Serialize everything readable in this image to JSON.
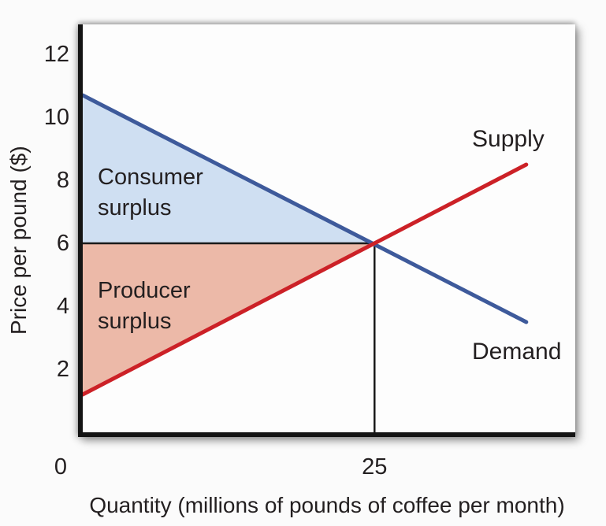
{
  "chart_data": {
    "type": "line",
    "title": "",
    "xlabel": "Quantity (millions of pounds of coffee per month)",
    "ylabel": "Price per pound ($)",
    "xlim": [
      0,
      42.2
    ],
    "ylim": [
      0,
      12.95
    ],
    "grid": false,
    "legend_position": "none",
    "axis_color": "#141414",
    "x_ticks": [
      {
        "label": "0",
        "x": 0
      },
      {
        "label": "25",
        "x": 25
      }
    ],
    "y_ticks": [
      {
        "label": "2",
        "y": 2
      },
      {
        "label": "4",
        "y": 4
      },
      {
        "label": "6",
        "y": 6
      },
      {
        "label": "8",
        "y": 8
      },
      {
        "label": "10",
        "y": 10
      },
      {
        "label": "12",
        "y": 12
      }
    ],
    "series": [
      {
        "name": "Demand",
        "color": "#3e5a9b",
        "width": 5,
        "points": [
          [
            0,
            10.7
          ],
          [
            38,
            3.5
          ]
        ]
      },
      {
        "name": "Supply",
        "color": "#cc2127",
        "width": 5,
        "points": [
          [
            0,
            1.2
          ],
          [
            38,
            8.5
          ]
        ]
      }
    ],
    "equilibrium": {
      "x": 25,
      "price": 6,
      "line_color": "#1a1a1a",
      "line_width": 2.5
    },
    "regions": [
      {
        "name": "consumer-surplus",
        "text": "Consumer\nsurplus",
        "fill": "#cfdff2",
        "vertices": [
          [
            0,
            10.7
          ],
          [
            25,
            6
          ],
          [
            0,
            6
          ]
        ]
      },
      {
        "name": "producer-surplus",
        "text": "Producer\nsurplus",
        "fill": "#ecb9a8",
        "vertices": [
          [
            0,
            6
          ],
          [
            25,
            6
          ],
          [
            0,
            1.2
          ]
        ]
      }
    ],
    "curve_labels": [
      {
        "text": "Supply"
      },
      {
        "text": "Demand"
      }
    ]
  }
}
